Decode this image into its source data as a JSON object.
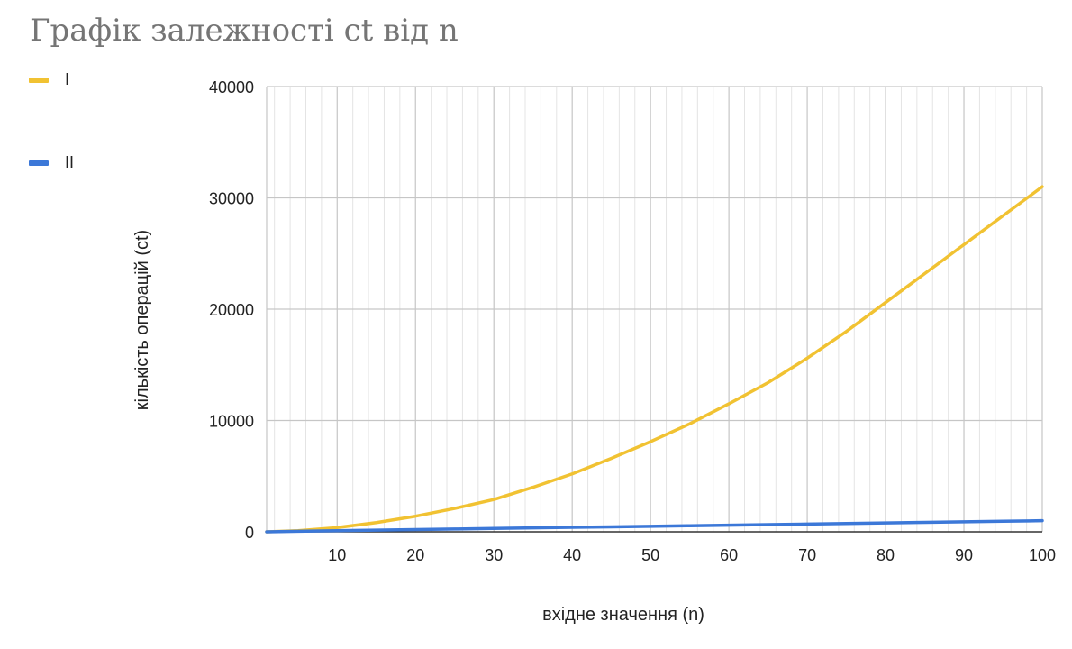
{
  "chart_data": {
    "type": "line",
    "title": "Графік залежності ct від n",
    "xlabel": "вхідне значення (n)",
    "ylabel": "кількість операцій (ct)",
    "xlim": [
      1,
      100
    ],
    "ylim": [
      0,
      40000
    ],
    "x_ticks": [
      10,
      20,
      30,
      40,
      50,
      60,
      70,
      80,
      90,
      100
    ],
    "y_ticks": [
      0,
      10000,
      20000,
      30000,
      40000
    ],
    "grid": true,
    "legend_position": "top-left",
    "x": [
      1,
      5,
      10,
      15,
      20,
      25,
      30,
      35,
      40,
      45,
      50,
      55,
      60,
      65,
      70,
      75,
      80,
      85,
      90,
      95,
      100
    ],
    "series": [
      {
        "name": "I",
        "color": "#f1c232",
        "values": [
          5,
          100,
          380,
          830,
          1400,
          2100,
          2900,
          4000,
          5200,
          6600,
          8100,
          9700,
          11500,
          13400,
          15600,
          18000,
          20600,
          23200,
          25800,
          28400,
          31000
        ]
      },
      {
        "name": "II",
        "color": "#3c78d8",
        "values": [
          2,
          50,
          100,
          150,
          200,
          250,
          300,
          350,
          400,
          450,
          500,
          550,
          600,
          650,
          700,
          750,
          800,
          850,
          900,
          950,
          1000
        ]
      }
    ]
  }
}
